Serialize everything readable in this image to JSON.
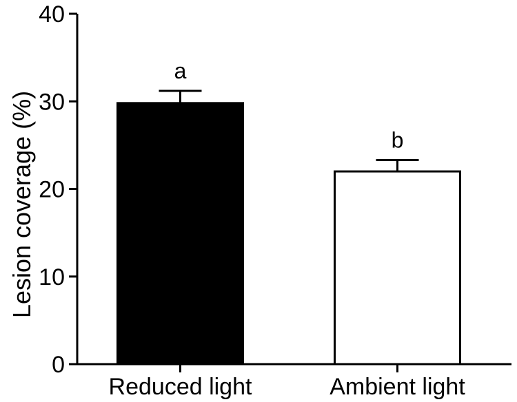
{
  "chart_data": {
    "type": "bar",
    "categories": [
      "Reduced light",
      "Ambient light"
    ],
    "values": [
      29.8,
      22.0
    ],
    "errors": [
      1.4,
      1.3
    ],
    "significance": [
      "a",
      "b"
    ],
    "bar_colors": [
      "#000000",
      "#ffffff"
    ],
    "ylabel": "Lesion coverage (%)",
    "xlabel": "",
    "ylim": [
      0,
      40
    ],
    "yticks": [
      0,
      10,
      20,
      30,
      40
    ],
    "grid": false,
    "legend": "none"
  }
}
